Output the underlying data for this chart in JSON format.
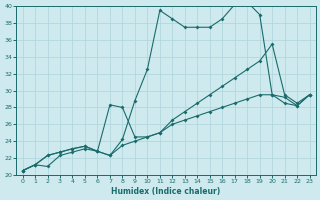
{
  "xlabel": "Humidex (Indice chaleur)",
  "bg_color": "#ceeaee",
  "grid_color": "#aed4da",
  "line_color": "#1a6b6b",
  "xlim": [
    -0.5,
    23.5
  ],
  "ylim": [
    20,
    40
  ],
  "xticks": [
    0,
    1,
    2,
    3,
    4,
    5,
    6,
    7,
    8,
    9,
    10,
    11,
    12,
    13,
    14,
    15,
    16,
    17,
    18,
    19,
    20,
    21,
    22,
    23
  ],
  "yticks": [
    20,
    22,
    24,
    26,
    28,
    30,
    32,
    34,
    36,
    38,
    40
  ],
  "line1_x": [
    0,
    1,
    2,
    3,
    4,
    5,
    6,
    7,
    8,
    9,
    10,
    11,
    12,
    13,
    14,
    15,
    16,
    17,
    18,
    19,
    20,
    21,
    22,
    23
  ],
  "line1_y": [
    20.5,
    21.2,
    21.0,
    22.3,
    22.7,
    23.1,
    22.8,
    22.3,
    24.2,
    28.8,
    32.5,
    39.5,
    38.5,
    37.5,
    37.5,
    37.5,
    38.5,
    40.2,
    40.5,
    39.0,
    29.5,
    29.2,
    28.2,
    29.5
  ],
  "line2_x": [
    0,
    1,
    2,
    3,
    4,
    5,
    6,
    7,
    8,
    9,
    10,
    11,
    12,
    13,
    14,
    15,
    16,
    17,
    18,
    19,
    20,
    21,
    22,
    23
  ],
  "line2_y": [
    20.5,
    21.2,
    22.3,
    22.7,
    23.1,
    23.4,
    22.8,
    28.3,
    28.0,
    24.5,
    24.5,
    25.0,
    26.5,
    27.5,
    28.5,
    29.5,
    30.5,
    31.5,
    32.5,
    33.5,
    35.5,
    29.5,
    28.5,
    29.5
  ],
  "line3_x": [
    0,
    1,
    2,
    3,
    4,
    5,
    6,
    7,
    8,
    9,
    10,
    11,
    12,
    13,
    14,
    15,
    16,
    17,
    18,
    19,
    20,
    21,
    22,
    23
  ],
  "line3_y": [
    20.5,
    21.2,
    22.3,
    22.7,
    23.1,
    23.4,
    22.8,
    22.3,
    23.5,
    24.0,
    24.5,
    25.0,
    26.0,
    26.5,
    27.0,
    27.5,
    28.0,
    28.5,
    29.0,
    29.5,
    29.5,
    28.5,
    28.2,
    29.5
  ]
}
